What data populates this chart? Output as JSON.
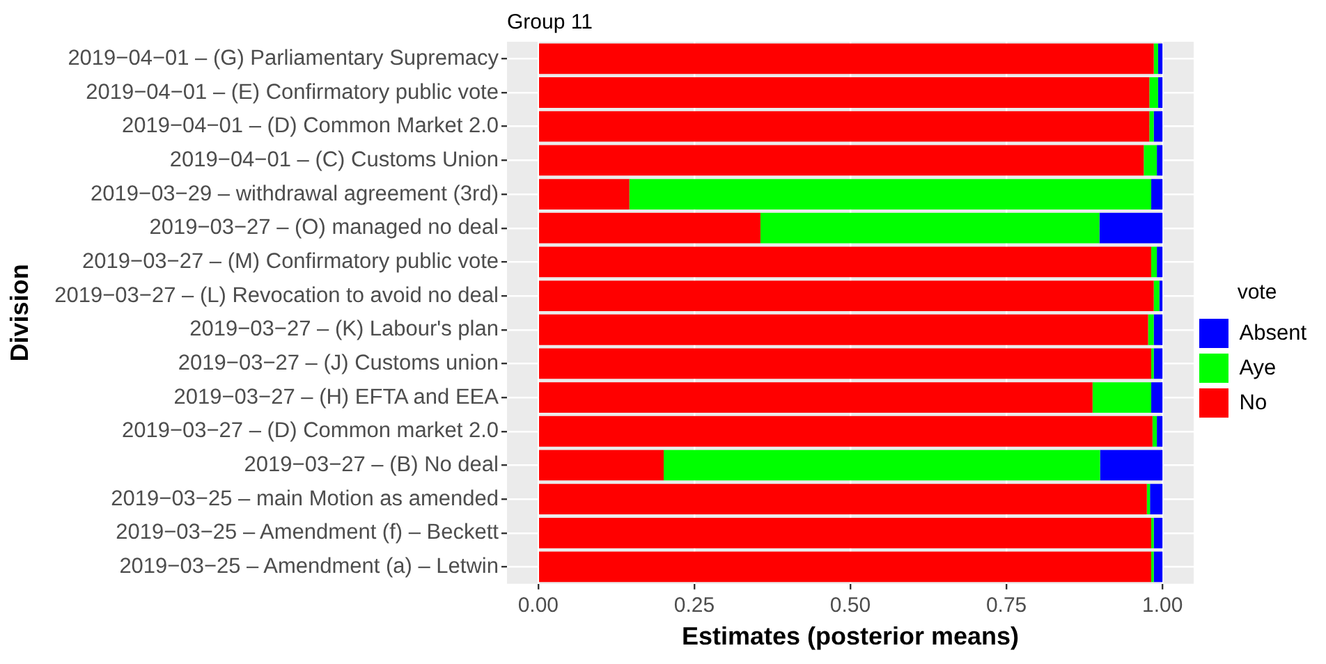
{
  "chart_data": {
    "type": "bar",
    "orientation": "horizontal",
    "stacked": true,
    "title": "Group 11",
    "xlabel": "Estimates (posterior means)",
    "ylabel": "Division",
    "legend_title": "vote",
    "legend": "right",
    "grid": true,
    "categories": [
      "2019−04−01 – (G) Parliamentary Supremacy",
      "2019−04−01 – (E) Confirmatory public vote",
      "2019−04−01 – (D) Common Market 2.0",
      "2019−04−01 – (C) Customs Union",
      "2019−03−29 – withdrawal agreement (3rd)",
      "2019−03−27 – (O) managed no deal",
      "2019−03−27 – (M) Confirmatory public vote",
      "2019−03−27 – (L) Revocation to avoid no deal",
      "2019−03−27 – (K) Labour's plan",
      "2019−03−27 – (J) Customs union",
      "2019−03−27 – (H) EFTA and EEA",
      "2019−03−27 – (D) Common market 2.0",
      "2019−03−27 – (B) No deal",
      "2019−03−25 – main Motion as amended",
      "2019−03−25 – Amendment (f) – Beckett",
      "2019−03−25 – Amendment (a) – Letwin"
    ],
    "xlim": [
      -0.05,
      1.05
    ],
    "xticks": [
      {
        "value": 0,
        "label": "0.00"
      },
      {
        "value": 0.25,
        "label": "0.25"
      },
      {
        "value": 0.5,
        "label": "0.50"
      },
      {
        "value": 0.75,
        "label": "0.75"
      },
      {
        "value": 1,
        "label": "1.00"
      }
    ],
    "series": [
      {
        "name": "No",
        "color": "#ff0000",
        "values": [
          0.986,
          0.979,
          0.979,
          0.97,
          0.146,
          0.356,
          0.982,
          0.986,
          0.977,
          0.982,
          0.888,
          0.984,
          0.201,
          0.975,
          0.982,
          0.982
        ]
      },
      {
        "name": "Aye",
        "color": "#00ff00",
        "values": [
          0.007,
          0.014,
          0.007,
          0.021,
          0.836,
          0.543,
          0.009,
          0.009,
          0.009,
          0.004,
          0.094,
          0.007,
          0.699,
          0.005,
          0.004,
          0.004
        ]
      },
      {
        "name": "Absent",
        "color": "#0000ff",
        "values": [
          0.007,
          0.007,
          0.014,
          0.009,
          0.018,
          0.101,
          0.009,
          0.005,
          0.014,
          0.014,
          0.018,
          0.009,
          0.1,
          0.02,
          0.014,
          0.014
        ]
      }
    ]
  }
}
